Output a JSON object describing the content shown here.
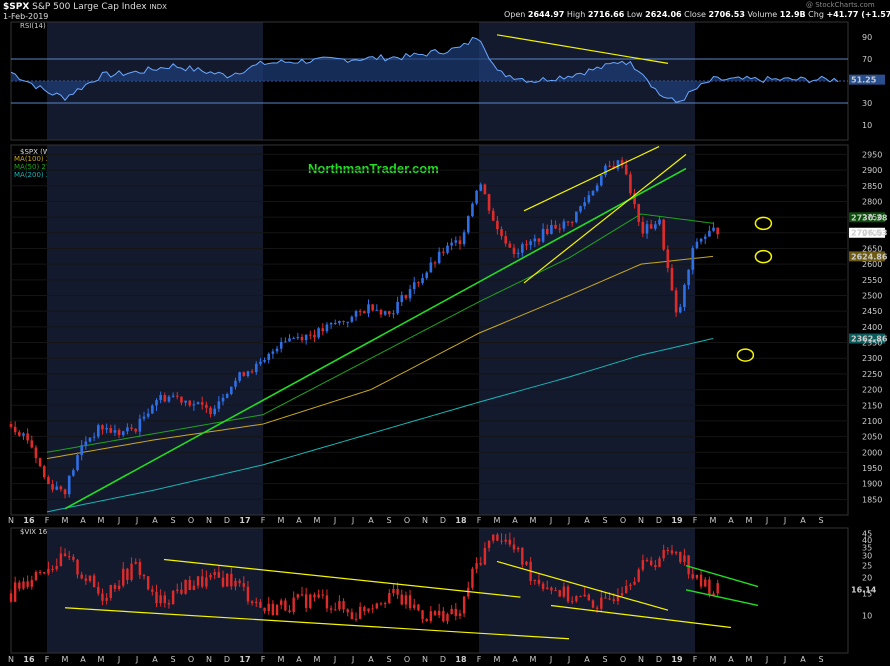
{
  "header": {
    "symbol": "$SPX",
    "name": "S&P 500 Large Cap Index",
    "exchange": "INDX",
    "date": "1-Feb-2019",
    "quote": {
      "open_label": "Open",
      "open": "2644.97",
      "high_label": "High",
      "high": "2716.66",
      "low_label": "Low",
      "low": "2624.06",
      "close_label": "Close",
      "close": "2706.53",
      "volume_label": "Volume",
      "volume": "12.9B",
      "chg_label": "Chg",
      "chg": "+41.77 (+1.57%)"
    },
    "watermark": "@ StockCharts.com"
  },
  "rsi_panel": {
    "legend": "RSI(14) 51.25",
    "current": "51.25",
    "ticks": [
      "90",
      "70",
      "30",
      "10"
    ]
  },
  "price_panel": {
    "legend": {
      "symbol": "$SPX (Weekly) 2706.53",
      "ma100": "MA(100) 2624.86",
      "ma50": "MA(50) 2730.38",
      "ma200": "MA(200) 2362.86"
    },
    "brand": "NorthmanTrader.com",
    "tags": {
      "ma50": "2730.38",
      "close": "2706.53",
      "ma100": "2624.86",
      "ma200": "2362.86"
    },
    "ticks": [
      "2950",
      "2900",
      "2850",
      "2800",
      "2750",
      "2700",
      "2650",
      "2600",
      "2550",
      "2500",
      "2450",
      "2400",
      "2350",
      "2300",
      "2250",
      "2200",
      "2150",
      "2100",
      "2050",
      "2000",
      "1950",
      "1900",
      "1850"
    ]
  },
  "vix_panel": {
    "legend": "$VIX 16.14",
    "current": "16.14",
    "ticks": [
      "45",
      "40",
      "35",
      "30",
      "25",
      "20",
      "15",
      "10"
    ]
  },
  "x_axis": {
    "labels": [
      "N",
      "16",
      "F",
      "M",
      "A",
      "M",
      "J",
      "J",
      "A",
      "S",
      "O",
      "N",
      "D",
      "17",
      "F",
      "M",
      "A",
      "M",
      "J",
      "J",
      "A",
      "S",
      "O",
      "N",
      "D",
      "18",
      "F",
      "M",
      "A",
      "M",
      "J",
      "J",
      "A",
      "S",
      "O",
      "N",
      "D",
      "19",
      "F",
      "M",
      "A",
      "M",
      "J",
      "J",
      "A",
      "S"
    ]
  },
  "colors": {
    "up": "#2f6fe6",
    "down": "#e02b2b",
    "ma50": "#1fa31f",
    "ma100": "#c8a820",
    "ma200": "#19b5b5",
    "trend_green": "#22dd22",
    "trend_yellow": "#f5f500",
    "brand": "#22dd22",
    "rsi_line": "#6aa7ff"
  },
  "chart_data": [
    {
      "type": "line",
      "title": "RSI(14)",
      "ylim": [
        0,
        100
      ],
      "reference_lines": [
        70,
        50,
        30
      ],
      "x": [
        "2015-11",
        "2016-01",
        "2016-02",
        "2016-04",
        "2016-06",
        "2016-08",
        "2016-11",
        "2017-01",
        "2017-03",
        "2017-06",
        "2017-09",
        "2017-12",
        "2018-01",
        "2018-02",
        "2018-04",
        "2018-06",
        "2018-08",
        "2018-09",
        "2018-10",
        "2018-11",
        "2018-12",
        "2019-01",
        "2019-02"
      ],
      "values": [
        58,
        40,
        35,
        55,
        58,
        64,
        55,
        66,
        68,
        70,
        72,
        80,
        92,
        58,
        50,
        55,
        63,
        69,
        60,
        38,
        30,
        42,
        51.25
      ]
    },
    {
      "type": "line",
      "title": "$SPX (Weekly)",
      "ylim": [
        1800,
        2980
      ],
      "series": [
        {
          "name": "$SPX",
          "x": [
            "2015-11",
            "2015-12",
            "2016-01",
            "2016-02",
            "2016-03",
            "2016-04",
            "2016-05",
            "2016-06",
            "2016-07",
            "2016-08",
            "2016-09",
            "2016-10",
            "2016-11",
            "2016-12",
            "2017-01",
            "2017-02",
            "2017-03",
            "2017-04",
            "2017-05",
            "2017-06",
            "2017-07",
            "2017-08",
            "2017-09",
            "2017-10",
            "2017-11",
            "2017-12",
            "2018-01",
            "2018-02",
            "2018-03",
            "2018-04",
            "2018-05",
            "2018-06",
            "2018-07",
            "2018-08",
            "2018-09",
            "2018-10",
            "2018-11",
            "2018-12",
            "2019-01",
            "2019-02"
          ],
          "values": [
            2090,
            2040,
            1900,
            1880,
            2030,
            2080,
            2060,
            2080,
            2170,
            2180,
            2160,
            2130,
            2200,
            2260,
            2280,
            2360,
            2370,
            2380,
            2410,
            2430,
            2470,
            2440,
            2510,
            2570,
            2640,
            2680,
            2870,
            2710,
            2640,
            2670,
            2720,
            2730,
            2810,
            2900,
            2930,
            2700,
            2740,
            2420,
            2670,
            2706.53
          ]
        },
        {
          "name": "MA(50)",
          "x": [
            "2016-01",
            "2016-07",
            "2017-01",
            "2017-07",
            "2018-01",
            "2018-06",
            "2018-10",
            "2019-02"
          ],
          "values": [
            2000,
            2060,
            2120,
            2300,
            2480,
            2620,
            2760,
            2730.38
          ]
        },
        {
          "name": "MA(100)",
          "x": [
            "2016-01",
            "2016-07",
            "2017-01",
            "2017-07",
            "2018-01",
            "2018-06",
            "2018-10",
            "2019-02"
          ],
          "values": [
            1980,
            2040,
            2090,
            2200,
            2380,
            2500,
            2600,
            2624.86
          ]
        },
        {
          "name": "MA(200)",
          "x": [
            "2016-01",
            "2016-07",
            "2017-01",
            "2017-07",
            "2018-01",
            "2018-06",
            "2018-10",
            "2019-02"
          ],
          "values": [
            1810,
            1880,
            1960,
            2060,
            2160,
            2240,
            2310,
            2362.86
          ]
        }
      ]
    },
    {
      "type": "line",
      "title": "$VIX",
      "ylim": [
        5,
        50
      ],
      "x": [
        "2015-11",
        "2015-12",
        "2016-01",
        "2016-02",
        "2016-04",
        "2016-06",
        "2016-07",
        "2016-09",
        "2016-11",
        "2017-01",
        "2017-04",
        "2017-06",
        "2017-08",
        "2017-10",
        "2017-12",
        "2018-02",
        "2018-04",
        "2018-06",
        "2018-08",
        "2018-10",
        "2018-12",
        "2019-01",
        "2019-02"
      ],
      "values": [
        15,
        20,
        25,
        28,
        14,
        25,
        12,
        18,
        20,
        11,
        14,
        10,
        15,
        10,
        10,
        45,
        20,
        14,
        12,
        24,
        34,
        19,
        16.14
      ]
    }
  ]
}
